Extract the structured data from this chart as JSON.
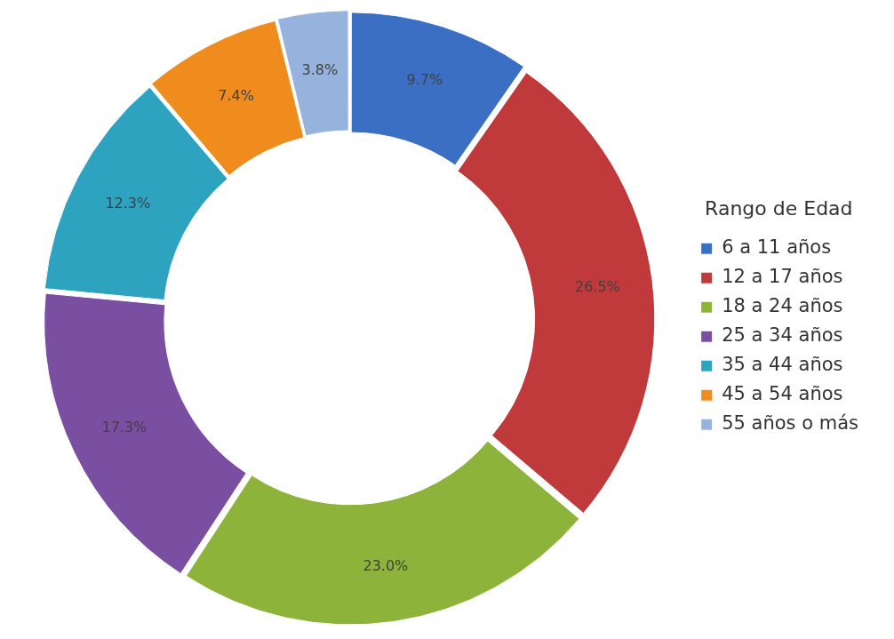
{
  "chart_data": {
    "type": "donut",
    "legend_title": "Rango de Edad",
    "categories": [
      "6 a 11 años",
      "12 a 17 años",
      "18 a 24 años",
      "25 a 34 años",
      "35 a 44 años",
      "45 a 54 años",
      "55 años o más"
    ],
    "values": [
      9.7,
      26.5,
      23.0,
      17.3,
      12.3,
      7.4,
      3.8
    ],
    "colors": [
      "#3a6fc4",
      "#c0393b",
      "#8db33a",
      "#7a4ea0",
      "#2ea3c0",
      "#f08c1e",
      "#95b3dc"
    ],
    "value_labels": [
      "9.7%",
      "26.5%",
      "23.0%",
      "17.3%",
      "12.3%",
      "7.4%",
      "3.8%"
    ],
    "legend": "right"
  }
}
